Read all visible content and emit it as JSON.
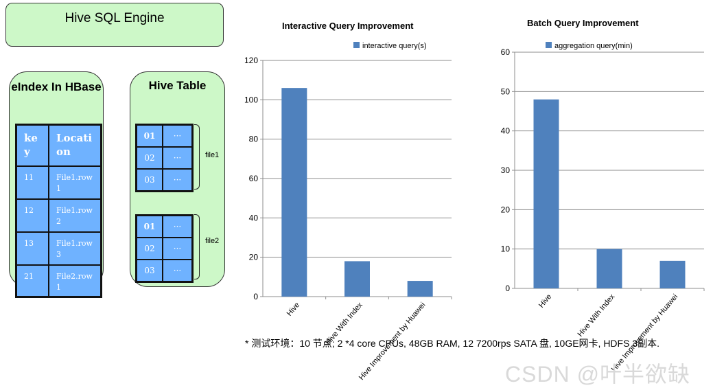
{
  "engine": {
    "label": "Hive SQL Engine"
  },
  "hbase": {
    "title": "eIndex In HBase",
    "headers": [
      "key",
      "Location"
    ],
    "rows": [
      {
        "key": "11",
        "location": "File1.row1"
      },
      {
        "key": "12",
        "location": "File1.row2"
      },
      {
        "key": "13",
        "location": "File1.row3"
      },
      {
        "key": "21",
        "location": "File2.row1"
      }
    ]
  },
  "hive_table": {
    "title": "Hive Table",
    "ellipsis": "···",
    "files": [
      {
        "name": "file1",
        "rows": [
          "01",
          "02",
          "03"
        ]
      },
      {
        "name": "file2",
        "rows": [
          "01",
          "02",
          "03"
        ]
      }
    ]
  },
  "chart_data": [
    {
      "type": "bar",
      "title": "Interactive Query Improvement",
      "legend": "interactive query(s)",
      "legend_position": "top",
      "categories": [
        "Hive",
        "Hive With Index",
        "Hive Improvement by Huawei"
      ],
      "values": [
        106,
        18,
        8
      ],
      "ylim": [
        0,
        120
      ],
      "yticks": [
        0,
        20,
        40,
        60,
        80,
        100,
        120
      ],
      "grid": true,
      "color": "#4f81bd"
    },
    {
      "type": "bar",
      "title": "Batch Query Improvement",
      "legend": "aggregation query(min)",
      "legend_position": "top",
      "categories": [
        "Hive",
        "Hive With Index",
        "Hive Improvement by Huawei"
      ],
      "values": [
        48,
        10,
        7
      ],
      "ylim": [
        0,
        60
      ],
      "yticks": [
        0,
        10,
        20,
        30,
        40,
        50,
        60
      ],
      "grid": true,
      "color": "#4f81bd"
    }
  ],
  "footnote": "* 测试环境：10 节点; 2 *4 core CPUs, 48GB RAM, 12 7200rps SATA 盘, 10GE网卡, HDFS 3副本.",
  "watermark": "CSDN @叶半欲缺"
}
